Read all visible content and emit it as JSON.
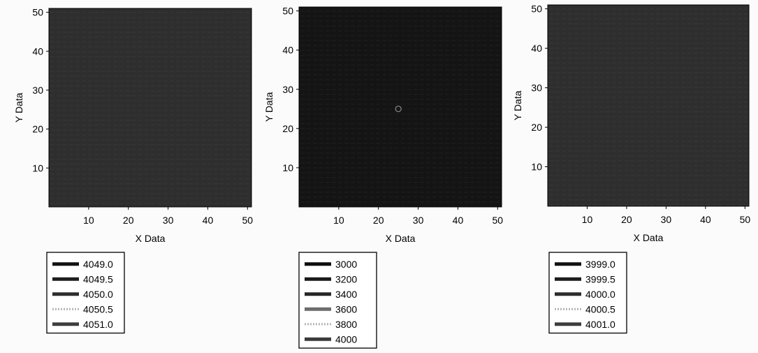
{
  "chart_data": [
    {
      "type": "heatmap",
      "title": "",
      "xlabel": "X Data",
      "ylabel": "Y Data",
      "xlim": [
        0,
        51
      ],
      "ylim": [
        0,
        51
      ],
      "x_ticks": [
        "10",
        "20",
        "30",
        "40",
        "50"
      ],
      "y_ticks": [
        "10",
        "20",
        "30",
        "40",
        "50"
      ],
      "x_tick_values": [
        10,
        20,
        30,
        40,
        50
      ],
      "y_tick_values": [
        10,
        20,
        30,
        40,
        50
      ],
      "fill_color": "#2e2e2e",
      "legend_position": "bottom-left",
      "legend": [
        {
          "label": "4049.0",
          "color": "#111111",
          "style": "solid"
        },
        {
          "label": "4049.5",
          "color": "#1e1e1e",
          "style": "solid"
        },
        {
          "label": "4050.0",
          "color": "#2c2c2c",
          "style": "solid"
        },
        {
          "label": "4050.5",
          "color": "#b5b5b5",
          "style": "dotted"
        },
        {
          "label": "4051.0",
          "color": "#3d3d3d",
          "style": "solid"
        }
      ],
      "features": []
    },
    {
      "type": "heatmap",
      "title": "",
      "xlabel": "X Data",
      "ylabel": "Y Data",
      "xlim": [
        0,
        51
      ],
      "ylim": [
        0,
        51
      ],
      "x_ticks": [
        "10",
        "20",
        "30",
        "40",
        "50"
      ],
      "y_ticks": [
        "10",
        "20",
        "30",
        "40",
        "50"
      ],
      "x_tick_values": [
        10,
        20,
        30,
        40,
        50
      ],
      "y_tick_values": [
        10,
        20,
        30,
        40,
        50
      ],
      "fill_color": "#141414",
      "legend_position": "bottom-left",
      "legend": [
        {
          "label": "3000",
          "color": "#0d0d0d",
          "style": "solid"
        },
        {
          "label": "3200",
          "color": "#1a1a1a",
          "style": "solid"
        },
        {
          "label": "3400",
          "color": "#262626",
          "style": "solid"
        },
        {
          "label": "3600",
          "color": "#6d6d6d",
          "style": "solid"
        },
        {
          "label": "3800",
          "color": "#b5b5b5",
          "style": "dotted"
        },
        {
          "label": "4000",
          "color": "#3a3a3a",
          "style": "solid"
        }
      ],
      "features": [
        {
          "x": 25,
          "y": 25
        }
      ]
    },
    {
      "type": "heatmap",
      "title": "",
      "xlabel": "X Data",
      "ylabel": "Y Data",
      "xlim": [
        0,
        51
      ],
      "ylim": [
        0,
        51
      ],
      "x_ticks": [
        "10",
        "20",
        "30",
        "40",
        "50"
      ],
      "y_ticks": [
        "10",
        "20",
        "30",
        "40",
        "50"
      ],
      "x_tick_values": [
        10,
        20,
        30,
        40,
        50
      ],
      "y_tick_values": [
        10,
        20,
        30,
        40,
        50
      ],
      "fill_color": "#2e2e2e",
      "legend_position": "bottom-left",
      "legend": [
        {
          "label": "3999.0",
          "color": "#111111",
          "style": "solid"
        },
        {
          "label": "3999.5",
          "color": "#1e1e1e",
          "style": "solid"
        },
        {
          "label": "4000.0",
          "color": "#2c2c2c",
          "style": "solid"
        },
        {
          "label": "4000.5",
          "color": "#b5b5b5",
          "style": "dotted"
        },
        {
          "label": "4001.0",
          "color": "#3d3d3d",
          "style": "solid"
        }
      ],
      "features": []
    }
  ]
}
